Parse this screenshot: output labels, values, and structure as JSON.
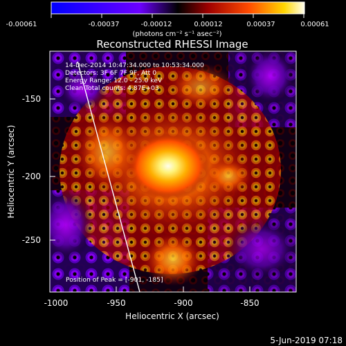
{
  "colorbar": {
    "tick_labels": [
      "-0.00061",
      "-0.00037",
      "-0.00012",
      "0.00012",
      "0.00037",
      "0.00061"
    ],
    "unit_label": "(photons cm⁻² s⁻¹ asec⁻²)",
    "range": [
      -0.00061,
      0.00061
    ]
  },
  "plot": {
    "title": "Reconstructed RHESSI Image",
    "xlabel": "Heliocentric X (arcsec)",
    "ylabel": "Heliocentric Y (arcsec)",
    "x_ticks": [
      "-1000",
      "-950",
      "-900",
      "-850"
    ],
    "y_ticks": [
      "-150",
      "-200",
      "-250"
    ],
    "xlim": [
      -1000,
      -815
    ],
    "ylim": [
      -290,
      -110
    ]
  },
  "annotations": {
    "time_range": "14-Dec-2014 10:47:34.000 to 10:53:34.000",
    "detectors": "Detectors: 3F 6F 7F 9F, Att 0",
    "energy_range": "Energy Range: 12.0 - 25.0 keV",
    "clean_line": "Clean    Total counts: 4.87E+03",
    "peak_position": "Position of Peak = [-901, -185]"
  },
  "footer": {
    "timestamp": "5-Jun-2019 07:18"
  },
  "colors": {
    "background": "#000000",
    "text": "#ffffff",
    "limb": "#ffffff"
  }
}
